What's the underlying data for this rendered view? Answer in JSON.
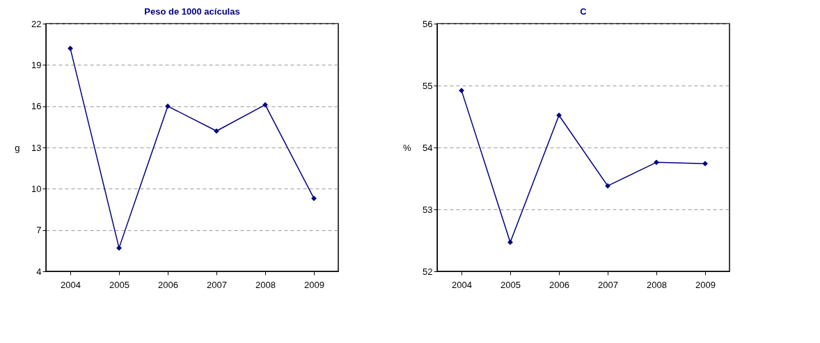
{
  "chart_data": [
    {
      "type": "line",
      "title": "Peso de 1000 acículas",
      "ylabel": "g",
      "categories": [
        "2004",
        "2005",
        "2006",
        "2007",
        "2008",
        "2009"
      ],
      "series": [
        {
          "color": "#000080",
          "values": [
            20.2,
            5.7,
            16.0,
            14.2,
            16.1,
            9.3
          ]
        }
      ],
      "ylim": [
        4,
        22
      ],
      "yticks": [
        4,
        7,
        10,
        13,
        16,
        19,
        22
      ],
      "grid": "y",
      "marker": "diamond",
      "line_style": "solid"
    },
    {
      "type": "line",
      "title": "C",
      "ylabel": "%",
      "categories": [
        "2004",
        "2005",
        "2006",
        "2007",
        "2008",
        "2009"
      ],
      "series": [
        {
          "color": "#000080",
          "values": [
            54.92,
            52.47,
            54.52,
            53.38,
            53.76,
            53.74
          ]
        }
      ],
      "ylim": [
        52,
        56
      ],
      "yticks": [
        52,
        53,
        54,
        55,
        56
      ],
      "grid": "y",
      "marker": "diamond",
      "line_style": "solid"
    }
  ]
}
